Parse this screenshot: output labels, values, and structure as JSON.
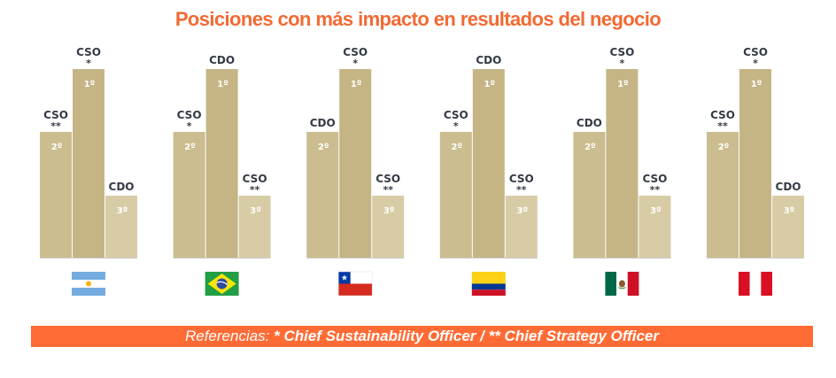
{
  "colors": {
    "title": "#f26a33",
    "legend_bg": "#ff6b35",
    "bar_first": "#c5b585",
    "bar_second": "#cbbd8f",
    "bar_third": "#d8cca6",
    "baseline": "#c9c9c9",
    "label": "#333a45"
  },
  "chart_data": {
    "type": "bar",
    "title": "Posiciones con más impacto en resultados del negocio",
    "value_meaning": "rank position (1º = highest bar)",
    "bar_order": [
      "2º",
      "1º",
      "3º"
    ],
    "groups": [
      {
        "country": "Argentina",
        "flag": "argentina-flag-icon",
        "bars": [
          {
            "rank": 2,
            "rank_label": "2º",
            "role": "CSO",
            "mark": "**"
          },
          {
            "rank": 1,
            "rank_label": "1º",
            "role": "CSO",
            "mark": "*"
          },
          {
            "rank": 3,
            "rank_label": "3º",
            "role": "CDO",
            "mark": ""
          }
        ]
      },
      {
        "country": "Brasil",
        "flag": "brazil-flag-icon",
        "bars": [
          {
            "rank": 2,
            "rank_label": "2º",
            "role": "CSO",
            "mark": "*"
          },
          {
            "rank": 1,
            "rank_label": "1º",
            "role": "CDO",
            "mark": ""
          },
          {
            "rank": 3,
            "rank_label": "3º",
            "role": "CSO",
            "mark": "**"
          }
        ]
      },
      {
        "country": "Chile",
        "flag": "chile-flag-icon",
        "bars": [
          {
            "rank": 2,
            "rank_label": "2º",
            "role": "CDO",
            "mark": ""
          },
          {
            "rank": 1,
            "rank_label": "1º",
            "role": "CSO",
            "mark": "*"
          },
          {
            "rank": 3,
            "rank_label": "3º",
            "role": "CSO",
            "mark": "**"
          }
        ]
      },
      {
        "country": "Colombia",
        "flag": "colombia-flag-icon",
        "bars": [
          {
            "rank": 2,
            "rank_label": "2º",
            "role": "CSO",
            "mark": "*"
          },
          {
            "rank": 1,
            "rank_label": "1º",
            "role": "CDO",
            "mark": ""
          },
          {
            "rank": 3,
            "rank_label": "3º",
            "role": "CSO",
            "mark": "**"
          }
        ]
      },
      {
        "country": "México",
        "flag": "mexico-flag-icon",
        "bars": [
          {
            "rank": 2,
            "rank_label": "2º",
            "role": "CDO",
            "mark": ""
          },
          {
            "rank": 1,
            "rank_label": "1º",
            "role": "CSO",
            "mark": "*"
          },
          {
            "rank": 3,
            "rank_label": "3º",
            "role": "CSO",
            "mark": "**"
          }
        ]
      },
      {
        "country": "Perú",
        "flag": "peru-flag-icon",
        "bars": [
          {
            "rank": 2,
            "rank_label": "2º",
            "role": "CSO",
            "mark": "**"
          },
          {
            "rank": 1,
            "rank_label": "1º",
            "role": "CSO",
            "mark": "*"
          },
          {
            "rank": 3,
            "rank_label": "3º",
            "role": "CDO",
            "mark": ""
          }
        ]
      }
    ]
  },
  "legend": {
    "prefix": "Referencias:",
    "text": " * Chief Sustainability Officer / ** Chief Strategy Officer"
  }
}
